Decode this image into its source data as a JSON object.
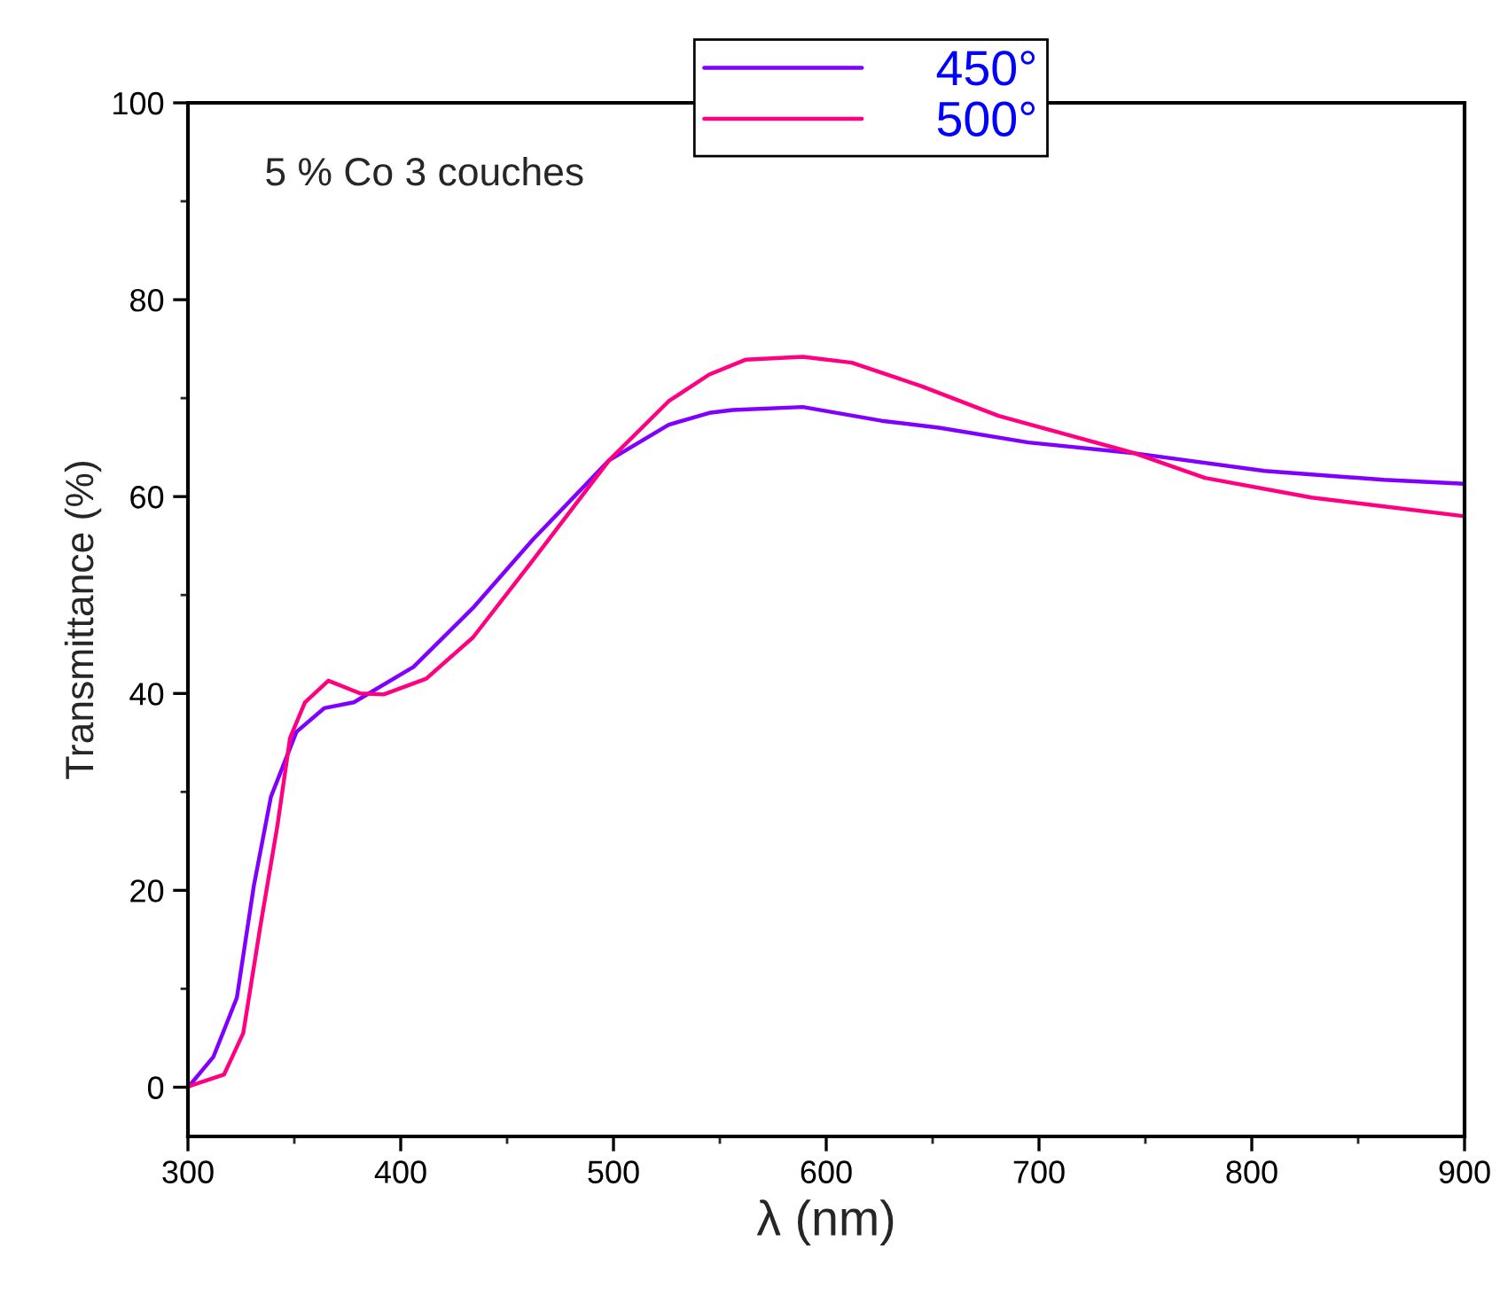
{
  "chart_data": {
    "type": "line",
    "xlabel": "λ (nm)",
    "ylabel": "Transmittance (%)",
    "annotations": [
      "5 % Co 3 couches"
    ],
    "xlim": [
      300,
      900
    ],
    "ylim": [
      -5,
      100
    ],
    "xticks": [
      300,
      {
        "value": 350,
        "label": null
      },
      400,
      {
        "value": 450,
        "label": null
      },
      500,
      {
        "value": 550,
        "label": null
      },
      600,
      {
        "value": 650,
        "label": null
      },
      700,
      {
        "value": 750,
        "label": null
      },
      800,
      {
        "value": 850,
        "label": null
      },
      900
    ],
    "yticks": [
      0,
      {
        "value": 10,
        "label": null
      },
      20,
      {
        "value": 30,
        "label": null
      },
      40,
      {
        "value": 50,
        "label": null
      },
      60,
      {
        "value": 70,
        "label": null
      },
      80,
      {
        "value": 90,
        "label": null
      },
      100
    ],
    "grid": false,
    "legend": "top",
    "marker": "none",
    "line_style": "solid",
    "series": [
      {
        "name": "450°",
        "color": "#8000ff",
        "x": [
          300.5,
          312,
          323,
          331,
          339,
          351,
          364,
          378,
          406,
          434,
          462,
          498,
          526,
          545,
          556,
          589,
          626,
          653,
          695,
          745,
          806,
          862,
          900
        ],
        "values": [
          0.1,
          3.1,
          9.1,
          20.5,
          29.5,
          36.1,
          38.5,
          39.1,
          42.7,
          48.7,
          55.6,
          63.7,
          67.3,
          68.5,
          68.8,
          69.1,
          67.7,
          67.0,
          65.5,
          64.4,
          62.6,
          61.7,
          61.3
        ]
      },
      {
        "name": "500°",
        "color": "#ff0080",
        "x": [
          300.5,
          317,
          326,
          334,
          342,
          348,
          355,
          366,
          381,
          392,
          412,
          434,
          462,
          498,
          526,
          545,
          562,
          589,
          612,
          645,
          681,
          745,
          778,
          828,
          862,
          900
        ],
        "values": [
          0.1,
          1.3,
          5.5,
          16.3,
          26.5,
          35.5,
          39.1,
          41.3,
          40.0,
          39.9,
          41.5,
          45.7,
          53.5,
          63.7,
          69.7,
          72.4,
          73.9,
          74.2,
          73.6,
          71.2,
          68.2,
          64.4,
          61.9,
          59.9,
          59.0,
          58.0
        ]
      }
    ]
  }
}
